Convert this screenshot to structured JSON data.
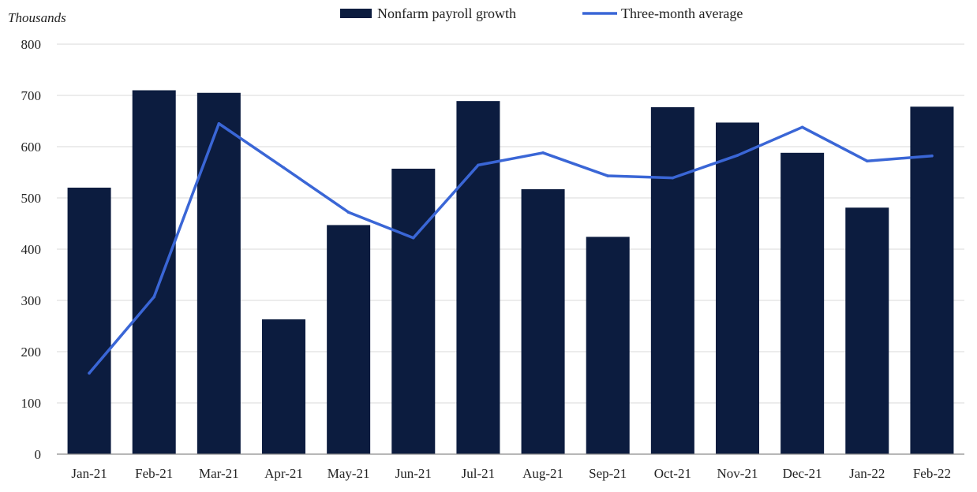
{
  "chart_data": {
    "type": "bar",
    "y_unit_label": "Thousands",
    "categories": [
      "Jan-21",
      "Feb-21",
      "Mar-21",
      "Apr-21",
      "May-21",
      "Jun-21",
      "Jul-21",
      "Aug-21",
      "Sep-21",
      "Oct-21",
      "Nov-21",
      "Dec-21",
      "Jan-22",
      "Feb-22"
    ],
    "series": [
      {
        "name": "Nonfarm payroll growth",
        "type": "bar",
        "color": "#0c1c3f",
        "values": [
          520,
          710,
          705,
          263,
          447,
          557,
          689,
          517,
          424,
          677,
          647,
          588,
          481,
          678
        ]
      },
      {
        "name": "Three-month average",
        "type": "line",
        "color": "#3a66d6",
        "values": [
          158,
          307,
          645,
          559,
          472,
          422,
          564,
          588,
          543,
          539,
          583,
          638,
          572,
          582
        ]
      }
    ],
    "ylim": [
      0,
      800
    ],
    "yticks": [
      "0",
      "100",
      "200",
      "300",
      "400",
      "500",
      "600",
      "700",
      "800"
    ],
    "grid": true,
    "legend_position": "top"
  }
}
